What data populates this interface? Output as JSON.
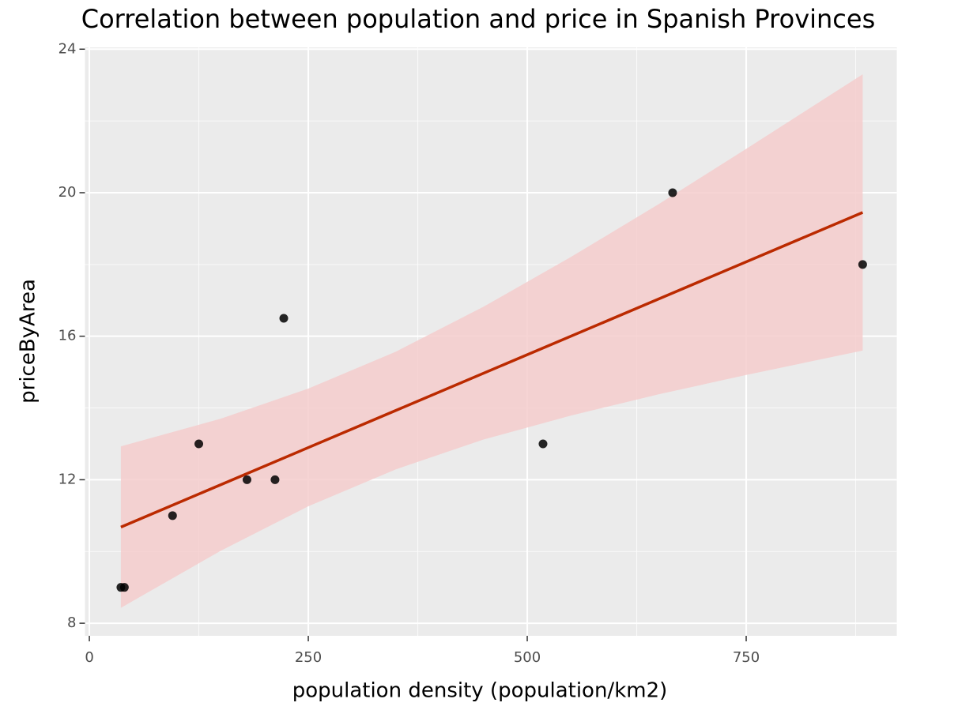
{
  "chart_data": {
    "type": "scatter",
    "title": "Correlation between population and price in Spanish Provinces",
    "xlabel": "population density (population/km2)",
    "ylabel": "priceByArea",
    "xlim": [
      -5,
      922
    ],
    "ylim": [
      7.65,
      24.05
    ],
    "xticks": [
      0,
      250,
      500,
      750
    ],
    "yticks": [
      8,
      12,
      16,
      20,
      24
    ],
    "x_minor_breaks": [
      125,
      375,
      625,
      875
    ],
    "y_minor_breaks": [
      10,
      14,
      18,
      22
    ],
    "grid": true,
    "x": [
      36,
      40,
      95,
      125,
      180,
      212,
      222,
      518,
      666,
      883
    ],
    "values": [
      9,
      9,
      11,
      13,
      12,
      12,
      16.5,
      13,
      20,
      18
    ],
    "color": "#000000",
    "fit": {
      "x": [
        36,
        883
      ],
      "values": [
        10.68,
        19.45
      ],
      "color": "#bb2a00"
    },
    "band": {
      "x": [
        36,
        150,
        250,
        350,
        450,
        550,
        650,
        750,
        883
      ],
      "lower": [
        8.43,
        10.02,
        11.26,
        12.29,
        13.12,
        13.79,
        14.38,
        14.92,
        15.6
      ],
      "upper": [
        12.93,
        13.7,
        14.54,
        15.57,
        16.82,
        18.21,
        19.68,
        21.22,
        23.3
      ],
      "color": "#f4cccc"
    }
  }
}
